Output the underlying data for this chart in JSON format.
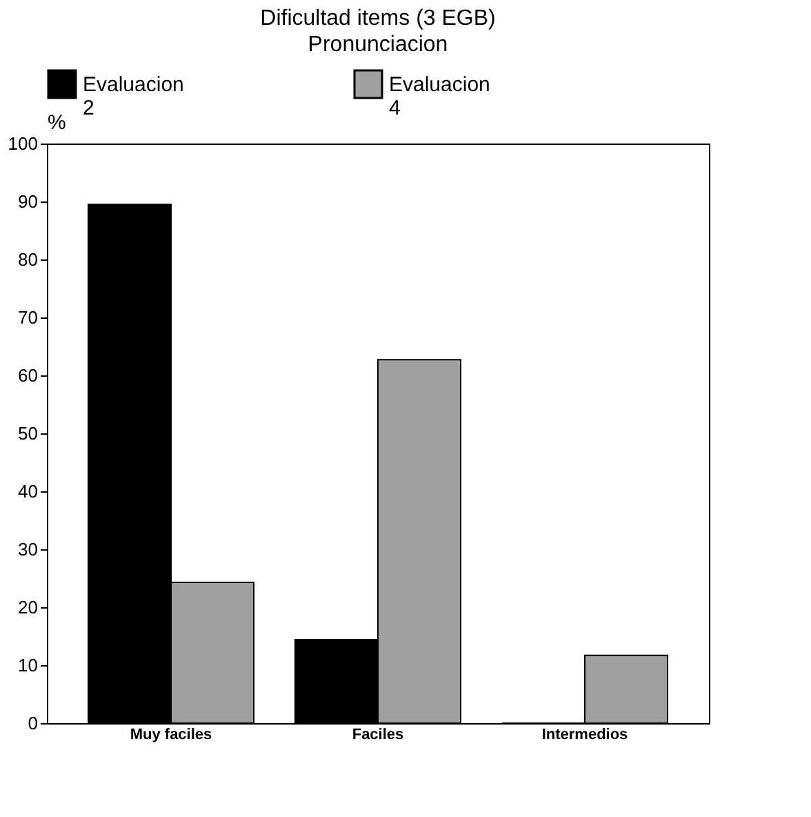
{
  "chart_data": {
    "type": "bar",
    "title": "Dificultad items (3 EGB)",
    "subtitle": "Pronunciacion",
    "ylabel": "%",
    "categories": [
      "Muy faciles",
      "Faciles",
      "Intermedios"
    ],
    "series": [
      {
        "name": "Evaluacion 2",
        "color": "#000000",
        "values": [
          89.5,
          14.4,
          0
        ]
      },
      {
        "name": "Evaluacion 4",
        "color": "#a0a0a0",
        "values": [
          24.3,
          62.7,
          11.7
        ]
      }
    ],
    "ylim": [
      0,
      100
    ],
    "yticks": [
      0,
      10,
      20,
      30,
      40,
      50,
      60,
      70,
      80,
      90,
      100
    ],
    "grid": false,
    "legend": "top"
  }
}
